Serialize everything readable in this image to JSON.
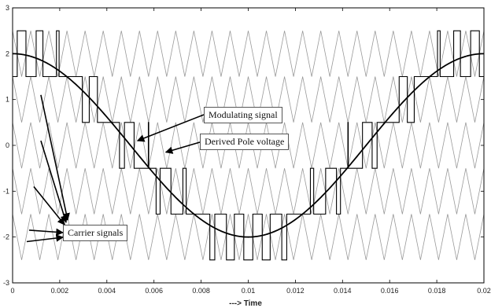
{
  "chart_data": {
    "type": "line",
    "title": "",
    "xlabel": "---> Time",
    "ylabel": "",
    "xlim": [
      0,
      0.02
    ],
    "ylim": [
      -3,
      3
    ],
    "grid": false,
    "x_ticks": [
      "0",
      "0.002",
      "0.004",
      "0.006",
      "0.008",
      "0.01",
      "0.012",
      "0.014",
      "0.016",
      "0.018",
      "0.02"
    ],
    "y_ticks": [
      "-3",
      "-2",
      "-1",
      "0",
      "1",
      "2",
      "3"
    ],
    "carriers": {
      "periods_in_window": 26,
      "bands": [
        [
          1.5,
          2.5
        ],
        [
          0.5,
          1.5
        ],
        [
          -0.5,
          0.5
        ],
        [
          -1.5,
          -0.5
        ],
        [
          -2.5,
          -1.5
        ]
      ],
      "color": "#9a9a9a"
    },
    "series": [
      {
        "name": "Modulating signal",
        "kind": "cosine",
        "amplitude": 2,
        "frequency_hz": 50,
        "color": "#000000"
      },
      {
        "name": "Derived Pole voltage",
        "kind": "multilevel-step",
        "levels": [
          2.5,
          1.5,
          0.5,
          -0.5,
          -1.5,
          -2.5
        ],
        "color": "#000000"
      }
    ],
    "annotations": [
      {
        "text": "Modulating signal",
        "points_to": [
          0.0053,
          0.1
        ]
      },
      {
        "text": "Derived Pole voltage",
        "points_to": [
          0.0065,
          -0.15
        ]
      },
      {
        "text": "Carrier signals",
        "points_to": [
          [
            0.0012,
            1.1
          ],
          [
            0.0012,
            0.1
          ],
          [
            0.0009,
            -0.9
          ],
          [
            0.0007,
            -1.85
          ],
          [
            0.0006,
            -2.1
          ]
        ]
      }
    ]
  }
}
